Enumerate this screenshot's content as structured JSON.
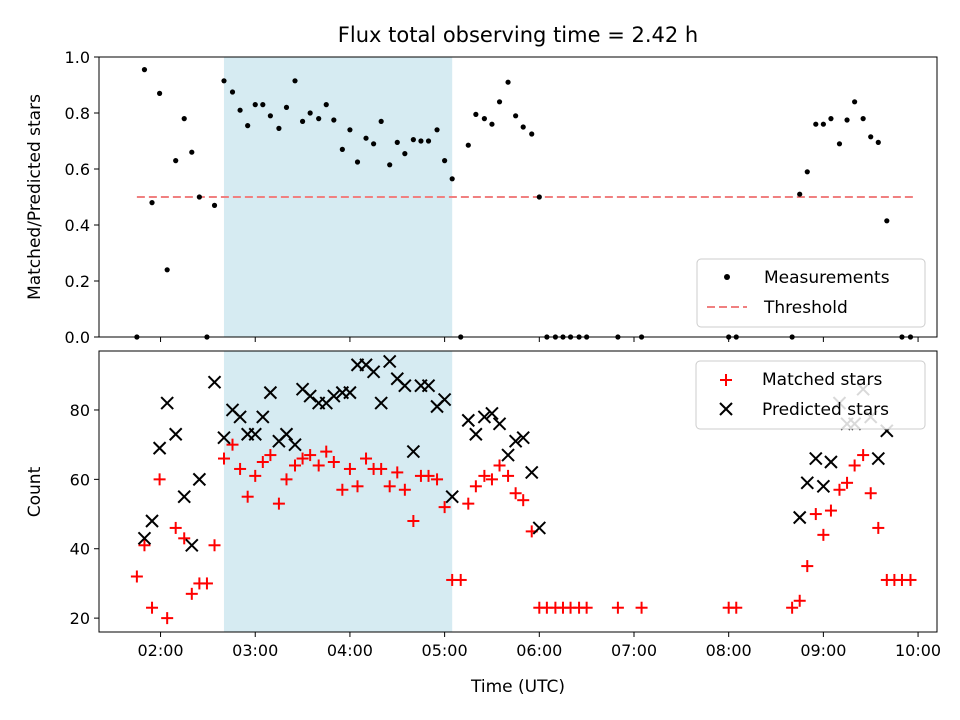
{
  "chart_data": [
    {
      "type": "scatter",
      "title": "Flux total observing time = 2.42 h",
      "ylabel": "Matched/Predicted stars",
      "xlabel": "",
      "ylim": [
        0,
        1
      ],
      "xlim": [
        1.35,
        10.2
      ],
      "yticks": [
        "0.0",
        "0.2",
        "0.4",
        "0.6",
        "0.8",
        "1.0"
      ],
      "highlight_span": [
        2.67,
        5.08
      ],
      "threshold": {
        "y": 0.5,
        "x_range": [
          1.75,
          9.95
        ],
        "color": "#f08080"
      },
      "legend": {
        "placement": "lower-right",
        "entries": [
          "Measurements",
          "Threshold"
        ]
      },
      "series": [
        {
          "name": "Measurements",
          "marker": "dot",
          "color": "#000000",
          "points": [
            [
              1.75,
              0.0
            ],
            [
              1.83,
              0.955
            ],
            [
              1.91,
              0.48
            ],
            [
              1.99,
              0.87
            ],
            [
              2.07,
              0.24
            ],
            [
              2.16,
              0.63
            ],
            [
              2.25,
              0.78
            ],
            [
              2.33,
              0.66
            ],
            [
              2.41,
              0.5
            ],
            [
              2.49,
              0.0
            ],
            [
              2.57,
              0.47
            ],
            [
              2.67,
              0.915
            ],
            [
              2.76,
              0.875
            ],
            [
              2.84,
              0.81
            ],
            [
              2.92,
              0.755
            ],
            [
              3.0,
              0.83
            ],
            [
              3.08,
              0.83
            ],
            [
              3.16,
              0.79
            ],
            [
              3.25,
              0.745
            ],
            [
              3.33,
              0.82
            ],
            [
              3.42,
              0.915
            ],
            [
              3.5,
              0.77
            ],
            [
              3.58,
              0.8
            ],
            [
              3.67,
              0.78
            ],
            [
              3.75,
              0.83
            ],
            [
              3.83,
              0.775
            ],
            [
              3.92,
              0.67
            ],
            [
              4.0,
              0.74
            ],
            [
              4.08,
              0.625
            ],
            [
              4.17,
              0.71
            ],
            [
              4.25,
              0.69
            ],
            [
              4.33,
              0.77
            ],
            [
              4.42,
              0.615
            ],
            [
              4.5,
              0.695
            ],
            [
              4.58,
              0.655
            ],
            [
              4.67,
              0.705
            ],
            [
              4.75,
              0.7
            ],
            [
              4.83,
              0.7
            ],
            [
              4.92,
              0.74
            ],
            [
              5.0,
              0.63
            ],
            [
              5.08,
              0.565
            ],
            [
              5.17,
              0.0
            ],
            [
              5.25,
              0.685
            ],
            [
              5.33,
              0.795
            ],
            [
              5.42,
              0.78
            ],
            [
              5.5,
              0.76
            ],
            [
              5.58,
              0.84
            ],
            [
              5.67,
              0.91
            ],
            [
              5.75,
              0.79
            ],
            [
              5.83,
              0.75
            ],
            [
              5.92,
              0.725
            ],
            [
              6.0,
              0.5
            ],
            [
              6.08,
              0.0
            ],
            [
              6.17,
              0.0
            ],
            [
              6.25,
              0.0
            ],
            [
              6.33,
              0.0
            ],
            [
              6.42,
              0.0
            ],
            [
              6.5,
              0.0
            ],
            [
              6.83,
              0.0
            ],
            [
              7.08,
              0.0
            ],
            [
              8.0,
              0.0
            ],
            [
              8.08,
              0.0
            ],
            [
              8.67,
              0.0
            ],
            [
              8.75,
              0.51
            ],
            [
              8.83,
              0.59
            ],
            [
              8.92,
              0.76
            ],
            [
              9.0,
              0.76
            ],
            [
              9.08,
              0.78
            ],
            [
              9.17,
              0.69
            ],
            [
              9.25,
              0.775
            ],
            [
              9.33,
              0.84
            ],
            [
              9.42,
              0.78
            ],
            [
              9.5,
              0.715
            ],
            [
              9.58,
              0.695
            ],
            [
              9.67,
              0.415
            ],
            [
              9.83,
              0.0
            ],
            [
              9.92,
              0.0
            ]
          ]
        }
      ]
    },
    {
      "type": "scatter",
      "title": "",
      "ylabel": "Count",
      "xlabel": "Time (UTC)",
      "ylim": [
        16,
        97
      ],
      "xlim": [
        1.35,
        10.2
      ],
      "yticks": [
        "20",
        "40",
        "60",
        "80"
      ],
      "xticks": [
        "02:00",
        "03:00",
        "04:00",
        "05:00",
        "06:00",
        "07:00",
        "08:00",
        "09:00",
        "10:00"
      ],
      "highlight_span": [
        2.67,
        5.08
      ],
      "legend": {
        "placement": "upper-right",
        "entries": [
          "Matched stars",
          "Predicted stars"
        ]
      },
      "series": [
        {
          "name": "Matched stars",
          "marker": "plus",
          "color": "#ff0000",
          "points": [
            [
              1.75,
              32
            ],
            [
              1.83,
              41
            ],
            [
              1.91,
              23
            ],
            [
              1.99,
              60
            ],
            [
              2.07,
              20
            ],
            [
              2.16,
              46
            ],
            [
              2.25,
              43
            ],
            [
              2.33,
              27
            ],
            [
              2.41,
              30
            ],
            [
              2.49,
              30
            ],
            [
              2.57,
              41
            ],
            [
              2.67,
              66
            ],
            [
              2.76,
              70
            ],
            [
              2.84,
              63
            ],
            [
              2.92,
              55
            ],
            [
              3.0,
              61
            ],
            [
              3.08,
              65
            ],
            [
              3.16,
              67
            ],
            [
              3.25,
              53
            ],
            [
              3.33,
              60
            ],
            [
              3.42,
              64
            ],
            [
              3.5,
              66
            ],
            [
              3.58,
              67
            ],
            [
              3.67,
              64
            ],
            [
              3.75,
              68
            ],
            [
              3.83,
              65
            ],
            [
              3.92,
              57
            ],
            [
              4.0,
              63
            ],
            [
              4.08,
              58
            ],
            [
              4.17,
              66
            ],
            [
              4.25,
              63
            ],
            [
              4.33,
              63
            ],
            [
              4.42,
              58
            ],
            [
              4.5,
              62
            ],
            [
              4.58,
              57
            ],
            [
              4.67,
              48
            ],
            [
              4.75,
              61
            ],
            [
              4.83,
              61
            ],
            [
              4.92,
              60
            ],
            [
              5.0,
              52
            ],
            [
              5.08,
              31
            ],
            [
              5.17,
              31
            ],
            [
              5.25,
              53
            ],
            [
              5.33,
              58
            ],
            [
              5.42,
              61
            ],
            [
              5.5,
              60
            ],
            [
              5.58,
              64
            ],
            [
              5.67,
              61
            ],
            [
              5.75,
              56
            ],
            [
              5.83,
              54
            ],
            [
              5.92,
              45
            ],
            [
              6.0,
              23
            ],
            [
              6.08,
              23
            ],
            [
              6.17,
              23
            ],
            [
              6.25,
              23
            ],
            [
              6.33,
              23
            ],
            [
              6.42,
              23
            ],
            [
              6.5,
              23
            ],
            [
              6.83,
              23
            ],
            [
              7.08,
              23
            ],
            [
              8.0,
              23
            ],
            [
              8.08,
              23
            ],
            [
              8.67,
              23
            ],
            [
              8.75,
              25
            ],
            [
              8.83,
              35
            ],
            [
              8.92,
              50
            ],
            [
              9.0,
              44
            ],
            [
              9.08,
              51
            ],
            [
              9.17,
              57
            ],
            [
              9.25,
              59
            ],
            [
              9.33,
              64
            ],
            [
              9.42,
              67
            ],
            [
              9.5,
              56
            ],
            [
              9.58,
              46
            ],
            [
              9.67,
              31
            ],
            [
              9.75,
              31
            ],
            [
              9.83,
              31
            ],
            [
              9.92,
              31
            ]
          ]
        },
        {
          "name": "Predicted stars",
          "marker": "x",
          "color": "#000000",
          "points": [
            [
              1.83,
              43
            ],
            [
              1.91,
              48
            ],
            [
              1.99,
              69
            ],
            [
              2.07,
              82
            ],
            [
              2.16,
              73
            ],
            [
              2.25,
              55
            ],
            [
              2.33,
              41
            ],
            [
              2.41,
              60
            ],
            [
              2.57,
              88
            ],
            [
              2.67,
              72
            ],
            [
              2.76,
              80
            ],
            [
              2.84,
              78
            ],
            [
              2.92,
              73
            ],
            [
              3.0,
              73
            ],
            [
              3.08,
              78
            ],
            [
              3.16,
              85
            ],
            [
              3.25,
              71
            ],
            [
              3.33,
              73
            ],
            [
              3.42,
              70
            ],
            [
              3.5,
              86
            ],
            [
              3.58,
              84
            ],
            [
              3.67,
              82
            ],
            [
              3.75,
              82
            ],
            [
              3.83,
              84
            ],
            [
              3.92,
              85
            ],
            [
              4.0,
              85
            ],
            [
              4.08,
              93
            ],
            [
              4.17,
              93
            ],
            [
              4.25,
              91
            ],
            [
              4.33,
              82
            ],
            [
              4.42,
              94
            ],
            [
              4.5,
              89
            ],
            [
              4.58,
              87
            ],
            [
              4.67,
              68
            ],
            [
              4.75,
              87
            ],
            [
              4.83,
              87
            ],
            [
              4.92,
              81
            ],
            [
              5.0,
              83
            ],
            [
              5.08,
              55
            ],
            [
              5.25,
              77
            ],
            [
              5.33,
              73
            ],
            [
              5.42,
              78
            ],
            [
              5.5,
              79
            ],
            [
              5.58,
              76
            ],
            [
              5.67,
              67
            ],
            [
              5.75,
              71
            ],
            [
              5.83,
              72
            ],
            [
              5.92,
              62
            ],
            [
              6.0,
              46
            ],
            [
              8.75,
              49
            ],
            [
              8.83,
              59
            ],
            [
              8.92,
              66
            ],
            [
              9.0,
              58
            ],
            [
              9.08,
              65
            ],
            [
              9.17,
              82
            ],
            [
              9.25,
              76
            ],
            [
              9.33,
              76
            ],
            [
              9.42,
              86
            ],
            [
              9.5,
              78
            ],
            [
              9.58,
              66
            ],
            [
              9.67,
              74
            ]
          ]
        }
      ]
    }
  ]
}
